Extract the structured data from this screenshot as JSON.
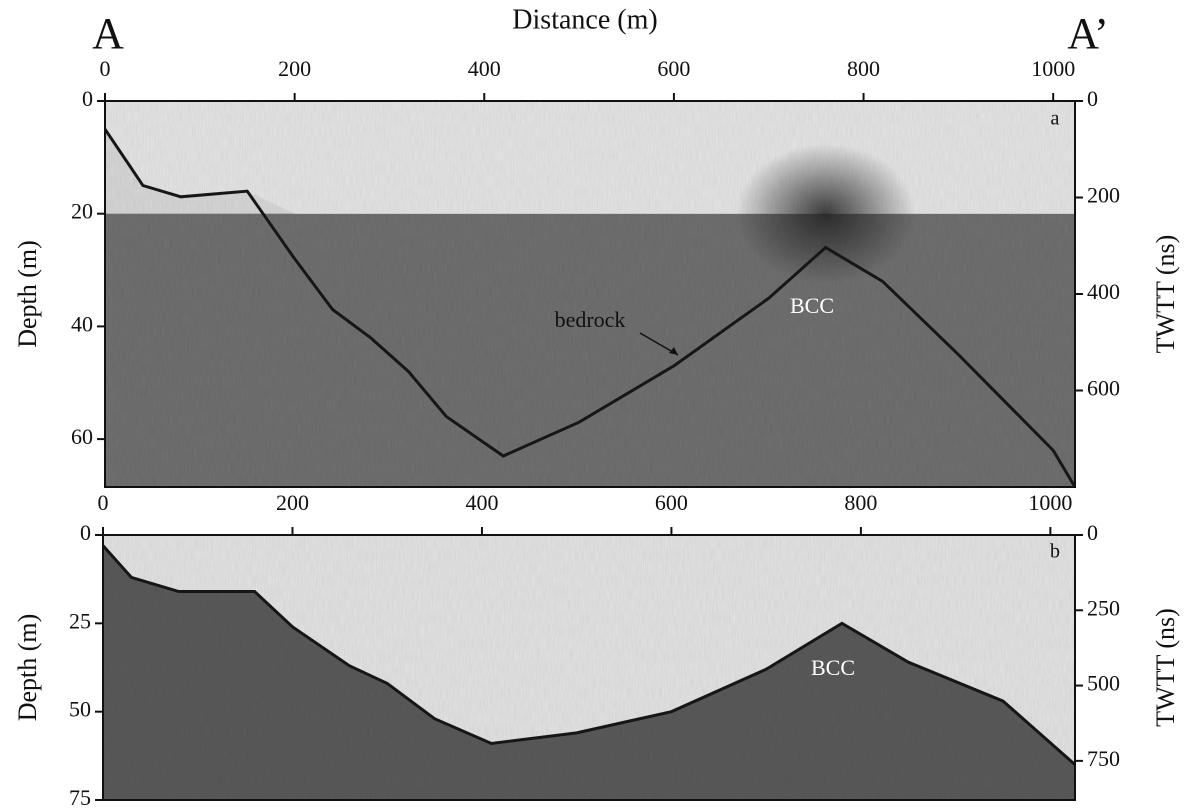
{
  "chart_data": [
    {
      "type": "radargram",
      "title": "Distance (m)",
      "start_label": "A",
      "end_label": "A’",
      "panel_label": "a",
      "ylabel": "Depth (m)",
      "y2label": "TWTT (ns)",
      "annotations": [
        "bedrock",
        "BCC"
      ],
      "xlim": [
        0,
        1023
      ],
      "xticks": [
        0,
        200,
        400,
        600,
        800,
        1000
      ],
      "ylim": [
        0,
        68.5
      ],
      "yticks": [
        0,
        20,
        40,
        60
      ],
      "y2lim": [
        0,
        800
      ],
      "y2ticks": [
        0,
        200,
        400,
        600
      ]
    },
    {
      "type": "radargram",
      "panel_label": "b",
      "ylabel": "Depth (m)",
      "y2label": "TWTT (ns)",
      "annotations": [
        "BCC"
      ],
      "xlim": [
        0,
        1026
      ],
      "xticks": [
        0,
        200,
        400,
        600,
        800,
        1000
      ],
      "ylim": [
        0,
        75
      ],
      "yticks": [
        0,
        25,
        50,
        75
      ],
      "y2lim": [
        0,
        880
      ],
      "y2ticks": [
        0,
        250,
        500,
        750
      ]
    }
  ]
}
